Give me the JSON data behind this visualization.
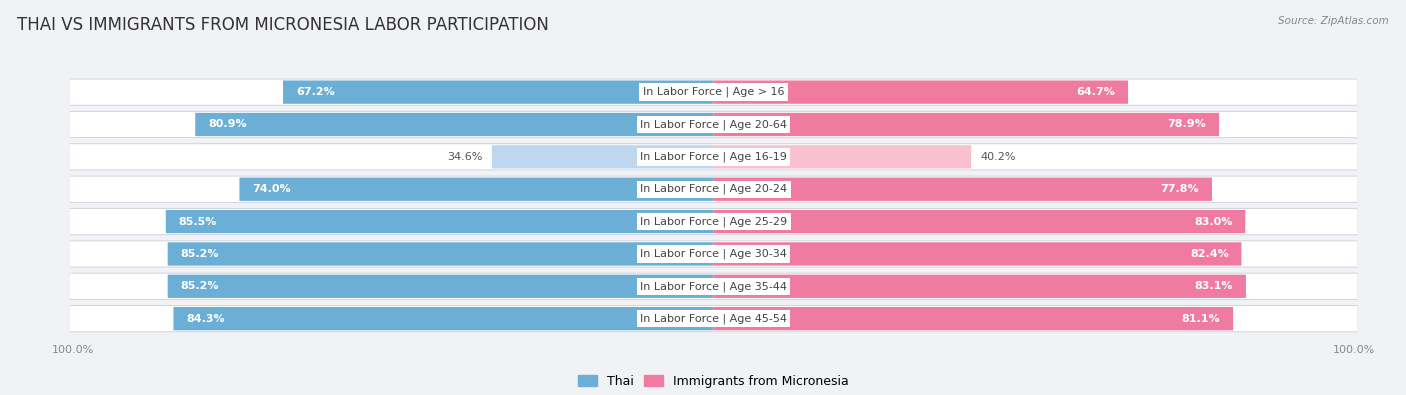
{
  "title": "THAI VS IMMIGRANTS FROM MICRONESIA LABOR PARTICIPATION",
  "source": "Source: ZipAtlas.com",
  "categories": [
    "In Labor Force | Age > 16",
    "In Labor Force | Age 20-64",
    "In Labor Force | Age 16-19",
    "In Labor Force | Age 20-24",
    "In Labor Force | Age 25-29",
    "In Labor Force | Age 30-34",
    "In Labor Force | Age 35-44",
    "In Labor Force | Age 45-54"
  ],
  "thai_values": [
    67.2,
    80.9,
    34.6,
    74.0,
    85.5,
    85.2,
    85.2,
    84.3
  ],
  "micro_values": [
    64.7,
    78.9,
    40.2,
    77.8,
    83.0,
    82.4,
    83.1,
    81.1
  ],
  "thai_color": "#6BAED6",
  "micro_color": "#F07BA0",
  "thai_color_light": "#BDD7EE",
  "micro_color_light": "#F9C0D0",
  "row_bg_color": "#E8EBF0",
  "row_bg_inner": "#FFFFFF",
  "page_bg": "#F0F2F5",
  "max_val": 100.0,
  "bar_height": 0.72,
  "title_fontsize": 12,
  "label_fontsize": 8,
  "value_fontsize": 8,
  "tick_fontsize": 8,
  "legend_fontsize": 9
}
